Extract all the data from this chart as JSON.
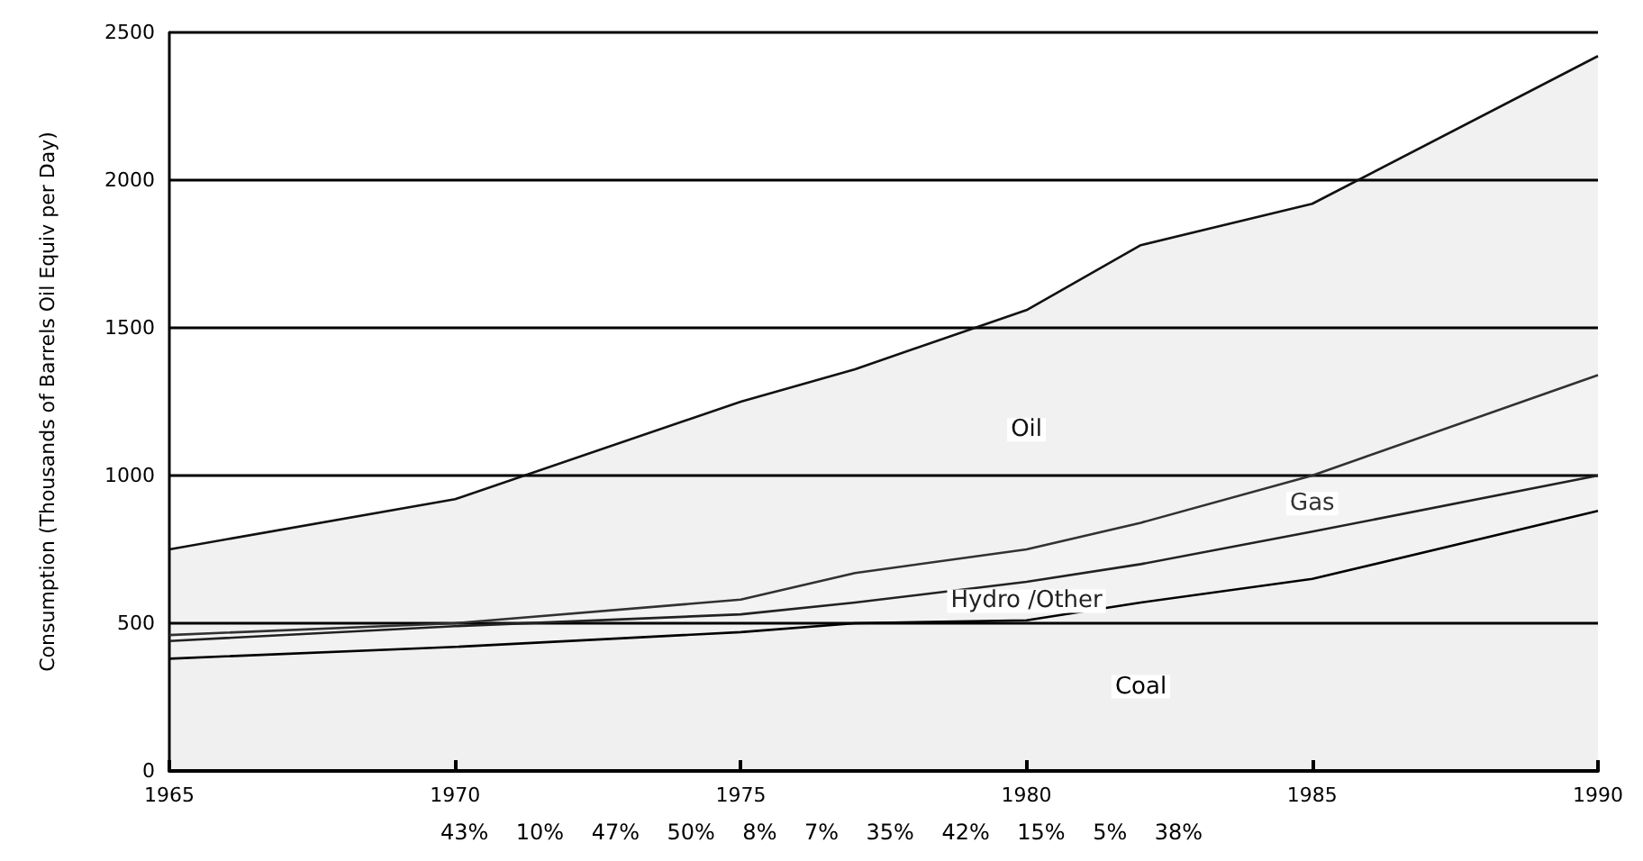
{
  "chart_data": {
    "type": "area",
    "stacked": true,
    "ylabel": "Consumption (Thousands of Barrels Oil Equiv per Day)",
    "x": [
      1965,
      1970,
      1975,
      1977,
      1980,
      1982,
      1985,
      1990
    ],
    "series": [
      {
        "name": "Coal",
        "color": "#000000",
        "values": [
          380,
          420,
          470,
          500,
          510,
          570,
          650,
          880
        ]
      },
      {
        "name": "Hydro /Other",
        "color": "#222222",
        "values": [
          60,
          70,
          60,
          70,
          130,
          130,
          160,
          120
        ]
      },
      {
        "name": "Gas",
        "color": "#333333",
        "values": [
          20,
          10,
          50,
          100,
          110,
          140,
          190,
          340
        ]
      },
      {
        "name": "Oil",
        "color": "#111111",
        "values": [
          290,
          420,
          670,
          690,
          810,
          940,
          920,
          1080
        ]
      }
    ],
    "xlim": [
      1965,
      1990
    ],
    "xticks": [
      1965,
      1970,
      1975,
      1980,
      1985,
      1990
    ],
    "ylim": [
      0,
      2500
    ],
    "yticks": [
      0,
      500,
      1000,
      1500,
      2000,
      2500
    ],
    "grid": "y",
    "legend": false,
    "annotations": [
      "43%",
      "10%",
      "47%",
      "50%",
      "8%",
      "7%",
      "35%",
      "42%",
      "15%",
      "5%",
      "38%"
    ]
  }
}
